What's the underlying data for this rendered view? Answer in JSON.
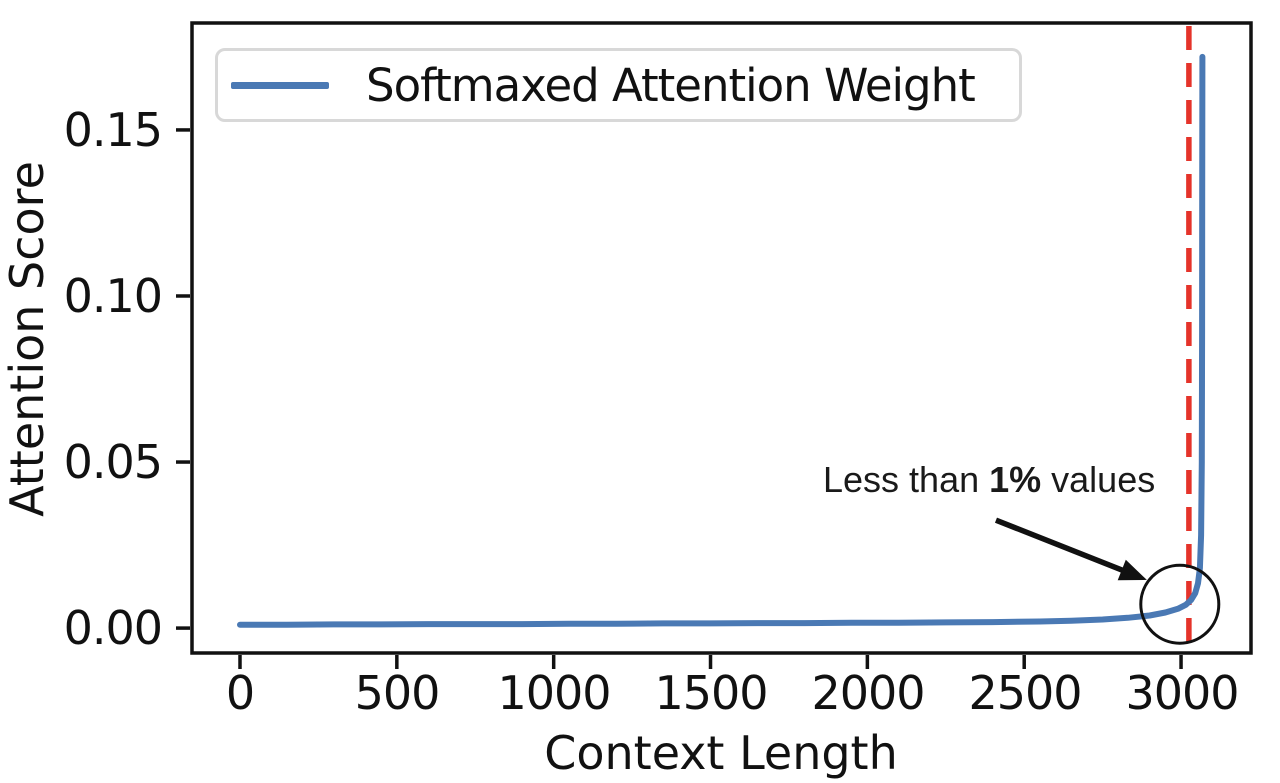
{
  "colors": {
    "line": "#4a79b4",
    "vline": "#e5332a",
    "axis": "#111111",
    "annotation": "#111111",
    "legend_border": "#d8d8d8"
  },
  "chart_data": {
    "type": "line",
    "title": "",
    "xlabel": "Context Length",
    "ylabel": "Attention Score",
    "xlim": [
      -153,
      3223
    ],
    "ylim": [
      -0.0075,
      0.1822
    ],
    "grid": false,
    "x_ticks": {
      "values": [
        0,
        500,
        1000,
        1500,
        2000,
        2500,
        3000
      ],
      "labels": [
        "0",
        "500",
        "1000",
        "1500",
        "2000",
        "2500",
        "3000"
      ]
    },
    "y_ticks": {
      "values": [
        0,
        0.05,
        0.1,
        0.15
      ],
      "labels": [
        "0.00",
        "0.05",
        "0.10",
        "0.15"
      ]
    },
    "legend": {
      "position": "upper-left",
      "label": "Softmaxed Attention Weight"
    },
    "series": [
      {
        "name": "Softmaxed Attention Weight",
        "color": "#4a79b4",
        "points": [
          [
            0,
            0.001
          ],
          [
            150,
            0.001
          ],
          [
            300,
            0.0011
          ],
          [
            450,
            0.0011
          ],
          [
            600,
            0.0012
          ],
          [
            750,
            0.0012
          ],
          [
            900,
            0.0012
          ],
          [
            1050,
            0.0013
          ],
          [
            1200,
            0.0013
          ],
          [
            1350,
            0.0014
          ],
          [
            1500,
            0.0014
          ],
          [
            1650,
            0.0015
          ],
          [
            1800,
            0.0015
          ],
          [
            1950,
            0.0016
          ],
          [
            2100,
            0.0016
          ],
          [
            2250,
            0.0017
          ],
          [
            2400,
            0.0018
          ],
          [
            2550,
            0.002
          ],
          [
            2650,
            0.0022
          ],
          [
            2750,
            0.0026
          ],
          [
            2830,
            0.0031
          ],
          [
            2900,
            0.0038
          ],
          [
            2950,
            0.0047
          ],
          [
            2990,
            0.0058
          ],
          [
            3015,
            0.007
          ],
          [
            3032,
            0.0085
          ],
          [
            3045,
            0.0105
          ],
          [
            3054,
            0.0135
          ],
          [
            3060,
            0.018
          ],
          [
            3064,
            0.028
          ],
          [
            3066,
            0.05
          ],
          [
            3067,
            0.09
          ],
          [
            3067.5,
            0.13
          ],
          [
            3068,
            0.172
          ]
        ]
      }
    ],
    "vline": {
      "x": 3025,
      "color": "#e5332a",
      "style": "dashed"
    },
    "annotation": {
      "text_prefix": "Less than ",
      "text_bold": "1%",
      "text_suffix": " values",
      "arrow_from": [
        2410,
        0.0325
      ],
      "arrow_to": [
        2891,
        0.0145
      ],
      "circle_center": [
        2996,
        0.0072
      ],
      "circle_radius_px": 39
    }
  }
}
